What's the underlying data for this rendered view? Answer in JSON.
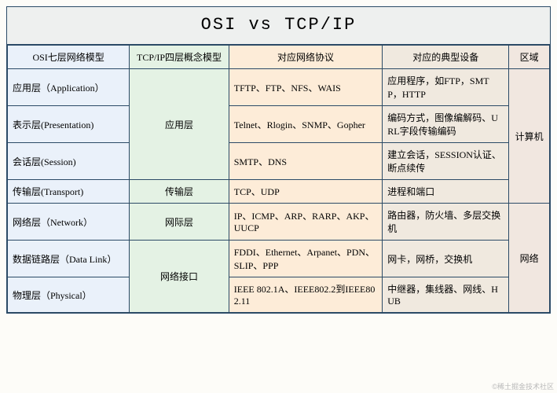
{
  "title": "OSI   vs   TCP/IP",
  "title_fontsize": 22,
  "colors": {
    "osi_bg": "#eaf1fa",
    "tcp_bg": "#e4f2e4",
    "protocol_bg": "#fdecd8",
    "device_bg": "#f0e9df",
    "zone_bg": "#f1e7e0",
    "title_bg": "#eef0ef",
    "border": "#2b4a66"
  },
  "headers": {
    "osi": "OSI七层网络模型",
    "tcp": "TCP/IP四层概念模型",
    "protocol": "对应网络协议",
    "device": "对应的典型设备",
    "zone": "区域"
  },
  "rows": [
    {
      "osi": "应用层（Application）",
      "protocol": "TFTP、FTP、NFS、WAIS",
      "device": "应用程序，如FTP，SMTP，HTTP"
    },
    {
      "osi": "表示层(Presentation)",
      "protocol": "Telnet、Rlogin、SNMP、Gopher",
      "device": "编码方式，图像编解码、URL字段传输编码"
    },
    {
      "osi": "会话层(Session)",
      "protocol": "SMTP、DNS",
      "device": "建立会话，SESSION认证、断点续传"
    },
    {
      "osi": "传输层(Transport)",
      "protocol": "TCP、UDP",
      "device": "进程和端口"
    },
    {
      "osi": "网络层（Network）",
      "protocol": "IP、ICMP、ARP、RARP、AKP、UUCP",
      "device": "路由器，防火墙、多层交换机"
    },
    {
      "osi": "数据链路层（Data Link）",
      "protocol": "FDDI、Ethernet、Arpanet、PDN、SLIP、PPP",
      "device": "网卡，网桥，交换机"
    },
    {
      "osi": "物理层（Physical）",
      "protocol": "IEEE 802.1A、IEEE802.2到IEEE802.11",
      "device": "中继器，集线器、网线、HUB"
    }
  ],
  "tcp_groups": [
    {
      "label": "应用层",
      "span": 3
    },
    {
      "label": "传输层",
      "span": 1
    },
    {
      "label": "网际层",
      "span": 1
    },
    {
      "label": "网络接口",
      "span": 2
    }
  ],
  "zone_groups": [
    {
      "label": "计算机",
      "span": 4
    },
    {
      "label": "网络",
      "span": 3
    }
  ],
  "watermark": "©稀土掘金技术社区"
}
